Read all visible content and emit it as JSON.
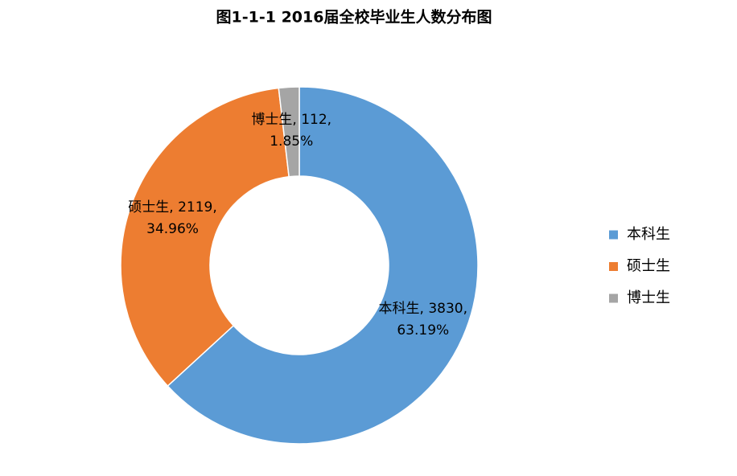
{
  "chart_data": {
    "type": "donut",
    "title": "图1-1-1 2016届全校毕业生人数分布图",
    "categories": [
      "本科生",
      "硕士生",
      "博士生"
    ],
    "values": [
      3830,
      2119,
      112
    ],
    "value_labels": [
      [
        "本科生, 3830,",
        "63.19%"
      ],
      [
        "硕士生, 2119,",
        "34.96%"
      ],
      [
        "博士生, 112,",
        "1.85%"
      ]
    ],
    "colors": [
      "#5b9bd5",
      "#ed7d31",
      "#a5a5a5"
    ],
    "legend": "right"
  }
}
